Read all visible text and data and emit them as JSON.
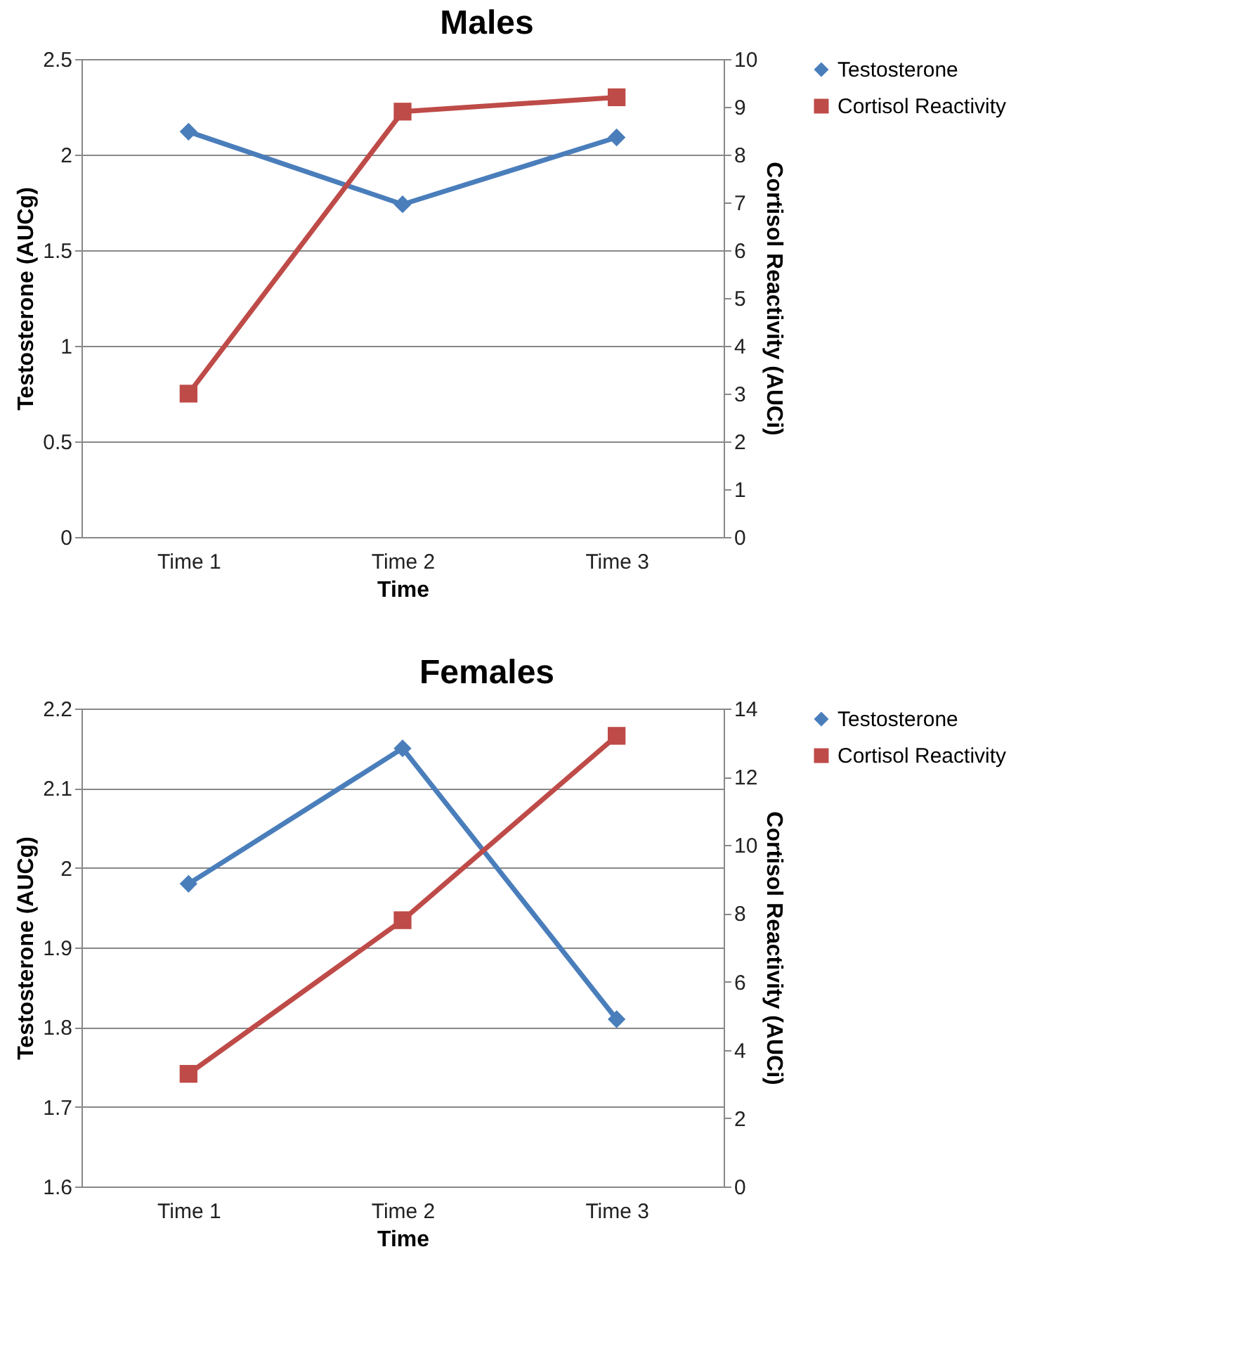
{
  "chart_data": [
    {
      "type": "line",
      "title": "Males",
      "xlabel": "Time",
      "ylabel": "Testosterone (AUCg)",
      "y2label": "Cortisol Reactivity (AUCi)",
      "categories": [
        "Time 1",
        "Time 2",
        "Time 3"
      ],
      "series": [
        {
          "name": "Testosterone",
          "color": "#4a7ebb",
          "values": [
            2.12,
            1.74,
            2.09
          ],
          "marker": "diamond"
        },
        {
          "name": "Cortisol Reactivity",
          "color": "#be4b48",
          "values": [
            3.0,
            8.9,
            9.2
          ],
          "axis": "y2",
          "marker": "square"
        }
      ],
      "ylim": [
        0,
        2.5
      ],
      "yticks": [
        0,
        0.5,
        1,
        1.5,
        2,
        2.5
      ],
      "y2lim": [
        0,
        10
      ],
      "y2ticks": [
        0,
        1,
        2,
        3,
        4,
        5,
        6,
        7,
        8,
        9,
        10
      ],
      "grid": "y",
      "legend": "right"
    },
    {
      "type": "line",
      "title": "Females",
      "xlabel": "Time",
      "ylabel": "Testosterone (AUCg)",
      "y2label": "Cortisol Reactivity (AUCi)",
      "categories": [
        "Time 1",
        "Time 2",
        "Time 3"
      ],
      "series": [
        {
          "name": "Testosterone",
          "color": "#4a7ebb",
          "values": [
            1.98,
            2.15,
            1.81
          ],
          "marker": "diamond"
        },
        {
          "name": "Cortisol Reactivity",
          "color": "#be4b48",
          "values": [
            3.3,
            7.8,
            13.2
          ],
          "axis": "y2",
          "marker": "square"
        }
      ],
      "ylim": [
        1.6,
        2.2
      ],
      "yticks": [
        1.6,
        1.7,
        1.8,
        1.9,
        2,
        2.1,
        2.2
      ],
      "y2lim": [
        0,
        14
      ],
      "y2ticks": [
        0,
        2,
        4,
        6,
        8,
        10,
        12,
        14
      ],
      "grid": "y",
      "legend": "right"
    }
  ]
}
